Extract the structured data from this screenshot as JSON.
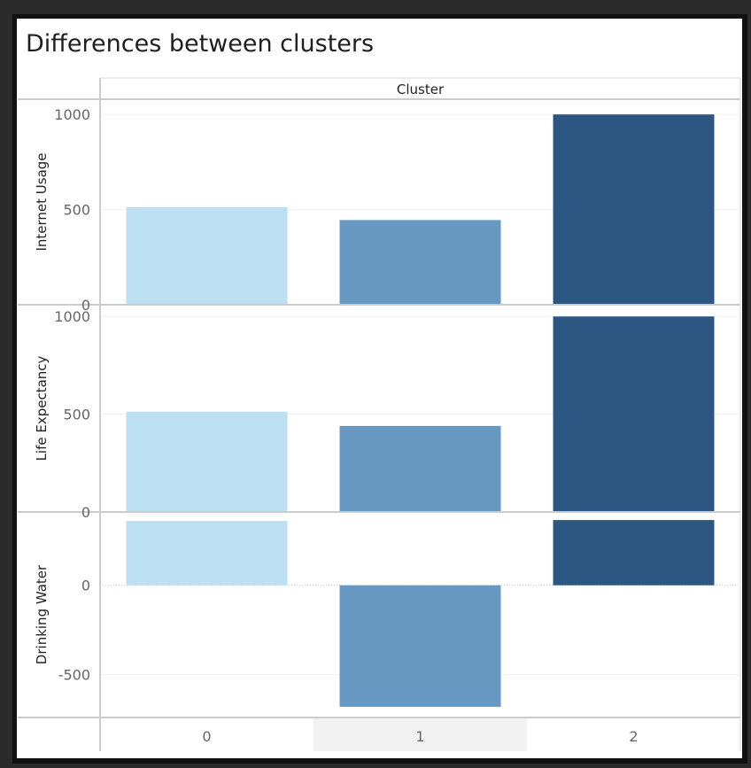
{
  "chart_data": {
    "type": "bar",
    "title": "Differences between clusters",
    "column_header": "Cluster",
    "categories": [
      "0",
      "1",
      "2"
    ],
    "colors": [
      "#bcdff1",
      "#6798c1",
      "#2c5782"
    ],
    "selected_category": "1",
    "panels": [
      {
        "name": "Internet Usage",
        "values": [
          513,
          445,
          1000
        ],
        "ylim": [
          0,
          1080
        ],
        "yticks": [
          0,
          500,
          1000
        ],
        "tick_labels": [
          "0",
          "500",
          "1000"
        ]
      },
      {
        "name": "Life Expectancy",
        "values": [
          513,
          440,
          1000
        ],
        "ylim": [
          0,
          1060
        ],
        "yticks": [
          0,
          500,
          1000
        ],
        "tick_labels": [
          "0",
          "500",
          "1000"
        ]
      },
      {
        "name": "Drinking Water",
        "values": [
          360,
          -680,
          365
        ],
        "ylim": [
          -740,
          410
        ],
        "yticks": [
          -500,
          0
        ],
        "tick_labels": [
          "-500",
          "0"
        ]
      }
    ]
  }
}
